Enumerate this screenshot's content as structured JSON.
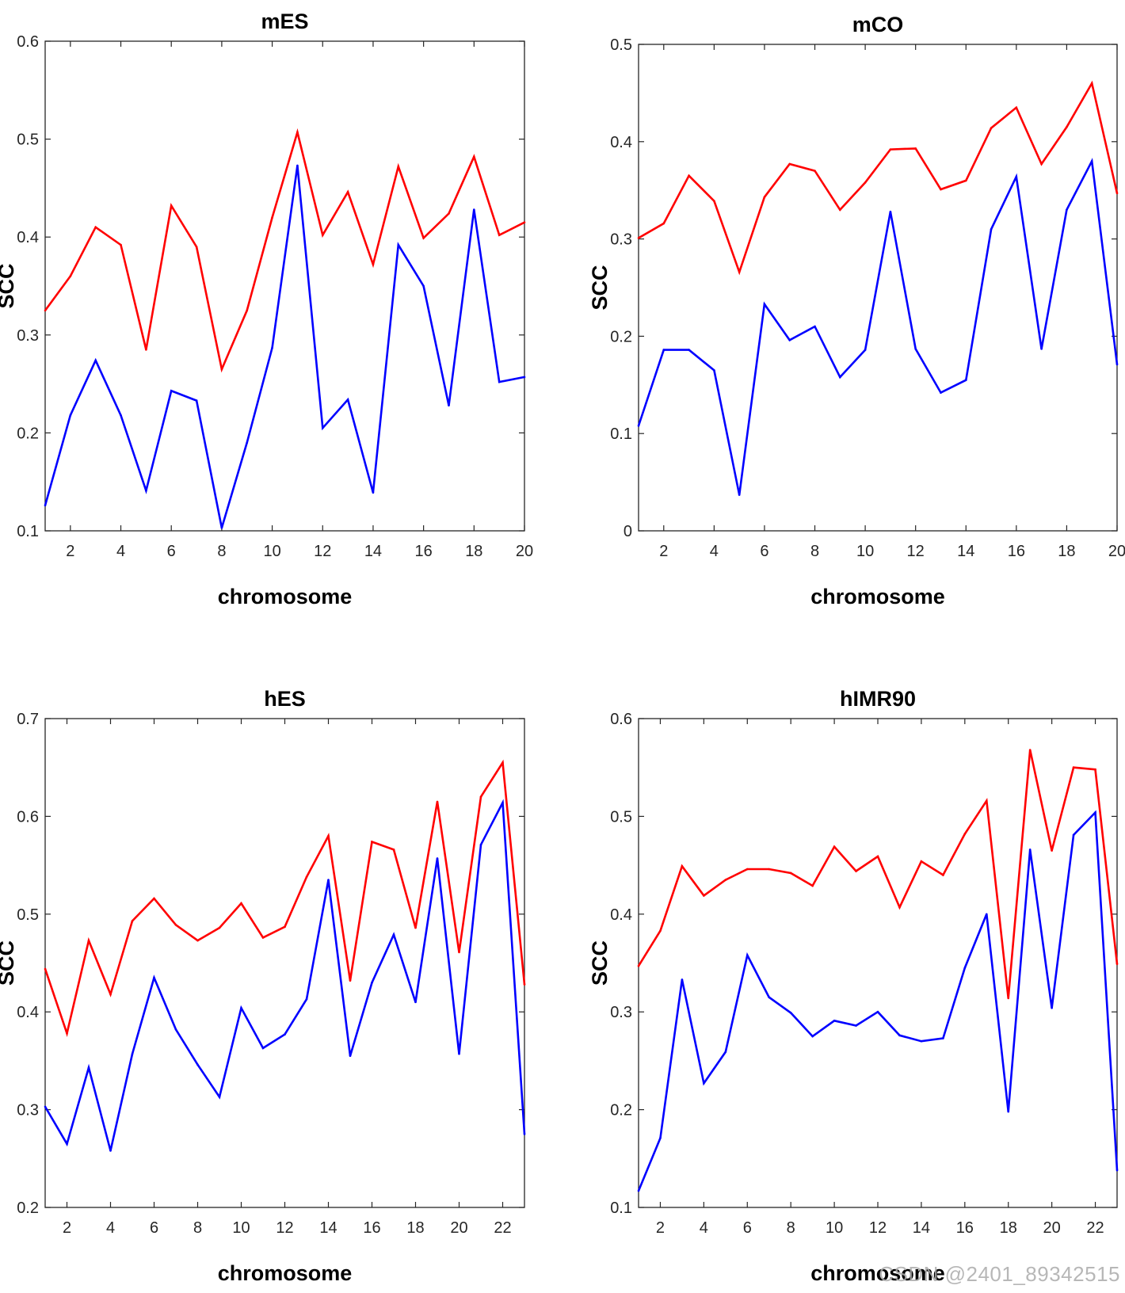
{
  "watermark": "CSDN @2401_89342515",
  "chart_data": [
    {
      "type": "line",
      "title": "mES",
      "xlabel": "chromosome",
      "ylabel": "SCC",
      "xlim": [
        1,
        20
      ],
      "ylim": [
        0.1,
        0.6
      ],
      "xticks": [
        2,
        4,
        6,
        8,
        10,
        12,
        14,
        16,
        18,
        20
      ],
      "yticks": [
        0.1,
        0.2,
        0.3,
        0.4,
        0.5,
        0.6
      ],
      "ytick_labels": [
        "0.1",
        "0.2",
        "0.3",
        "0.4",
        "0.5",
        "0.6"
      ],
      "x": [
        1,
        2,
        3,
        4,
        5,
        6,
        7,
        8,
        9,
        10,
        11,
        12,
        13,
        14,
        15,
        16,
        17,
        18,
        19,
        20
      ],
      "series": [
        {
          "name": "red",
          "color": "#ff0000",
          "values": [
            0.325,
            0.36,
            0.41,
            0.392,
            0.285,
            0.432,
            0.39,
            0.265,
            0.325,
            0.42,
            0.507,
            0.402,
            0.446,
            0.372,
            0.472,
            0.399,
            0.424,
            0.482,
            0.402,
            0.415
          ]
        },
        {
          "name": "blue",
          "color": "#0000ff",
          "values": [
            0.126,
            0.218,
            0.274,
            0.218,
            0.141,
            0.243,
            0.233,
            0.103,
            0.19,
            0.287,
            0.473,
            0.205,
            0.234,
            0.139,
            0.392,
            0.35,
            0.228,
            0.428,
            0.252,
            0.257
          ]
        }
      ]
    },
    {
      "type": "line",
      "title": "mCO",
      "xlabel": "chromosome",
      "ylabel": "SCC",
      "xlim": [
        1,
        20
      ],
      "ylim": [
        0,
        0.5
      ],
      "xticks": [
        2,
        4,
        6,
        8,
        10,
        12,
        14,
        16,
        18,
        20
      ],
      "yticks": [
        0,
        0.1,
        0.2,
        0.3,
        0.4,
        0.5
      ],
      "ytick_labels": [
        "0",
        "0.1",
        "0.2",
        "0.3",
        "0.4",
        "0.5"
      ],
      "x": [
        1,
        2,
        3,
        4,
        5,
        6,
        7,
        8,
        9,
        10,
        11,
        12,
        13,
        14,
        15,
        16,
        17,
        18,
        19,
        20
      ],
      "series": [
        {
          "name": "red",
          "color": "#ff0000",
          "values": [
            0.301,
            0.316,
            0.365,
            0.339,
            0.266,
            0.343,
            0.377,
            0.37,
            0.33,
            0.358,
            0.392,
            0.393,
            0.351,
            0.36,
            0.414,
            0.435,
            0.377,
            0.415,
            0.46,
            0.347
          ]
        },
        {
          "name": "blue",
          "color": "#0000ff",
          "values": [
            0.108,
            0.186,
            0.186,
            0.165,
            0.037,
            0.233,
            0.196,
            0.21,
            0.158,
            0.186,
            0.328,
            0.187,
            0.142,
            0.155,
            0.31,
            0.364,
            0.187,
            0.33,
            0.38,
            0.171
          ]
        }
      ]
    },
    {
      "type": "line",
      "title": "hES",
      "xlabel": "chromosome",
      "ylabel": "SCC",
      "xlim": [
        1,
        23
      ],
      "ylim": [
        0.2,
        0.7
      ],
      "xticks": [
        2,
        4,
        6,
        8,
        10,
        12,
        14,
        16,
        18,
        20,
        22
      ],
      "yticks": [
        0.2,
        0.3,
        0.4,
        0.5,
        0.6,
        0.7
      ],
      "ytick_labels": [
        "0.2",
        "0.3",
        "0.4",
        "0.5",
        "0.6",
        "0.7"
      ],
      "x": [
        1,
        2,
        3,
        4,
        5,
        6,
        7,
        8,
        9,
        10,
        11,
        12,
        13,
        14,
        15,
        16,
        17,
        18,
        19,
        20,
        21,
        22,
        23
      ],
      "series": [
        {
          "name": "red",
          "color": "#ff0000",
          "values": [
            0.444,
            0.378,
            0.473,
            0.418,
            0.493,
            0.516,
            0.489,
            0.473,
            0.486,
            0.511,
            0.476,
            0.487,
            0.538,
            0.58,
            0.432,
            0.574,
            0.566,
            0.486,
            0.615,
            0.461,
            0.62,
            0.655,
            0.428
          ]
        },
        {
          "name": "blue",
          "color": "#0000ff",
          "values": [
            0.303,
            0.265,
            0.343,
            0.258,
            0.357,
            0.435,
            0.382,
            0.346,
            0.313,
            0.404,
            0.363,
            0.377,
            0.413,
            0.535,
            0.355,
            0.43,
            0.479,
            0.41,
            0.557,
            0.357,
            0.571,
            0.614,
            0.275
          ]
        }
      ]
    },
    {
      "type": "line",
      "title": "hIMR90",
      "xlabel": "chromosome",
      "ylabel": "SCC",
      "xlim": [
        1,
        23
      ],
      "ylim": [
        0.1,
        0.6
      ],
      "xticks": [
        2,
        4,
        6,
        8,
        10,
        12,
        14,
        16,
        18,
        20,
        22
      ],
      "yticks": [
        0.1,
        0.2,
        0.3,
        0.4,
        0.5,
        0.6
      ],
      "ytick_labels": [
        "0.1",
        "0.2",
        "0.3",
        "0.4",
        "0.5",
        "0.6"
      ],
      "x": [
        1,
        2,
        3,
        4,
        5,
        6,
        7,
        8,
        9,
        10,
        11,
        12,
        13,
        14,
        15,
        16,
        17,
        18,
        19,
        20,
        21,
        22,
        23
      ],
      "series": [
        {
          "name": "red",
          "color": "#ff0000",
          "values": [
            0.347,
            0.383,
            0.449,
            0.419,
            0.435,
            0.446,
            0.446,
            0.442,
            0.429,
            0.469,
            0.444,
            0.459,
            0.407,
            0.454,
            0.44,
            0.482,
            0.516,
            0.314,
            0.568,
            0.465,
            0.55,
            0.548,
            0.349
          ]
        },
        {
          "name": "blue",
          "color": "#0000ff",
          "values": [
            0.117,
            0.171,
            0.333,
            0.227,
            0.259,
            0.358,
            0.315,
            0.299,
            0.275,
            0.291,
            0.286,
            0.3,
            0.276,
            0.27,
            0.273,
            0.345,
            0.4,
            0.198,
            0.466,
            0.304,
            0.481,
            0.504,
            0.138
          ]
        }
      ]
    }
  ]
}
